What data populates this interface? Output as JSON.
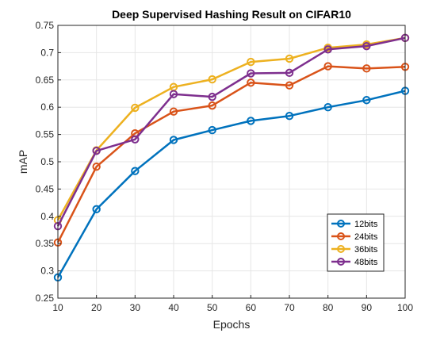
{
  "chart_data": {
    "type": "line",
    "title": "Deep Supervised Hashing Result on CIFAR10",
    "xlabel": "Epochs",
    "ylabel": "mAP",
    "xlim": [
      10,
      100
    ],
    "ylim": [
      0.25,
      0.75
    ],
    "x": [
      10,
      20,
      30,
      40,
      50,
      60,
      70,
      80,
      90,
      100
    ],
    "xticks": [
      "10",
      "20",
      "30",
      "40",
      "50",
      "60",
      "70",
      "80",
      "90",
      "100"
    ],
    "yticks": [
      "0.25",
      "0.3",
      "0.35",
      "0.4",
      "0.45",
      "0.5",
      "0.55",
      "0.6",
      "0.65",
      "0.7",
      "0.75"
    ],
    "grid": true,
    "legend_position": "bottom-right",
    "series": [
      {
        "name": "12bits",
        "color": "#0072BD",
        "marker": "circle",
        "values": [
          0.288,
          0.413,
          0.483,
          0.54,
          0.558,
          0.575,
          0.584,
          0.6,
          0.613,
          0.63
        ]
      },
      {
        "name": "24bits",
        "color": "#D95319",
        "marker": "circle",
        "values": [
          0.352,
          0.491,
          0.552,
          0.592,
          0.603,
          0.645,
          0.64,
          0.675,
          0.671,
          0.674
        ]
      },
      {
        "name": "36bits",
        "color": "#EDB120",
        "marker": "circle",
        "values": [
          0.393,
          0.521,
          0.599,
          0.637,
          0.651,
          0.683,
          0.689,
          0.709,
          0.715,
          0.727
        ]
      },
      {
        "name": "48bits",
        "color": "#7E2F8E",
        "marker": "circle",
        "values": [
          0.382,
          0.52,
          0.541,
          0.624,
          0.619,
          0.662,
          0.663,
          0.706,
          0.712,
          0.727
        ]
      }
    ]
  }
}
